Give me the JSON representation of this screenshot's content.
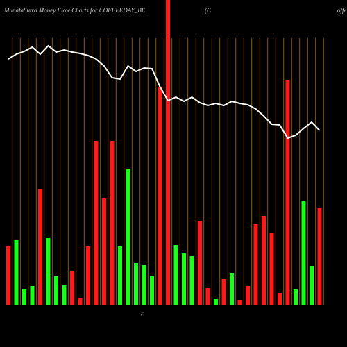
{
  "chart_data": {
    "type": "bar",
    "title": "MunafaSutra  Money Flow  Charts for COFFEEDAY_BE",
    "subtitle": "(C",
    "corner_text": "offe",
    "axis_marker": "C",
    "categories": [
      null,
      null,
      null,
      null,
      null,
      null,
      null,
      null,
      null,
      null,
      null,
      null,
      null,
      null,
      null,
      null,
      null,
      null,
      null,
      null,
      null,
      null,
      null,
      null,
      null,
      null,
      null,
      null,
      null,
      null,
      null,
      null,
      null,
      null,
      null,
      null,
      null,
      null,
      null,
      null
    ],
    "values": [
      85,
      94,
      23,
      28,
      168,
      97,
      42,
      30,
      50,
      10,
      85,
      237,
      154,
      237,
      85,
      197,
      61,
      58,
      42,
      315,
      440,
      87,
      75,
      71,
      122,
      25,
      9,
      38,
      46,
      8,
      28,
      117,
      129,
      104,
      18,
      325,
      23,
      150,
      56,
      140
    ],
    "colors": [
      "#ff1a1a",
      "#1aff1a",
      "#1aff1a",
      "#1aff1a",
      "#ff1a1a",
      "#1aff1a",
      "#1aff1a",
      "#1aff1a",
      "#ff1a1a",
      "#ff1a1a",
      "#ff1a1a",
      "#ff1a1a",
      "#ff1a1a",
      "#ff1a1a",
      "#1aff1a",
      "#1aff1a",
      "#1aff1a",
      "#1aff1a",
      "#1aff1a",
      "#ff1a1a",
      "#ff1a1a",
      "#1aff1a",
      "#1aff1a",
      "#1aff1a",
      "#ff1a1a",
      "#ff1a1a",
      "#1aff1a",
      "#ff1a1a",
      "#1aff1a",
      "#ff1a1a",
      "#ff1a1a",
      "#ff1a1a",
      "#ff1a1a",
      "#ff1a1a",
      "#ff1a1a",
      "#ff1a1a",
      "#1aff1a",
      "#1aff1a",
      "#1aff1a",
      "#ff1a1a"
    ],
    "line": {
      "color": "#ffffff",
      "values": [
        355,
        362,
        366,
        372,
        362,
        374,
        365,
        368,
        365,
        363,
        360,
        355,
        345,
        328,
        326,
        345,
        337,
        342,
        341,
        315,
        295,
        300,
        294,
        300,
        292,
        288,
        291,
        288,
        294,
        291,
        289,
        283,
        273,
        261,
        260,
        241,
        245,
        255,
        264,
        252
      ]
    },
    "grid_color": "#b36b00",
    "ylim": [
      0,
      440
    ]
  }
}
